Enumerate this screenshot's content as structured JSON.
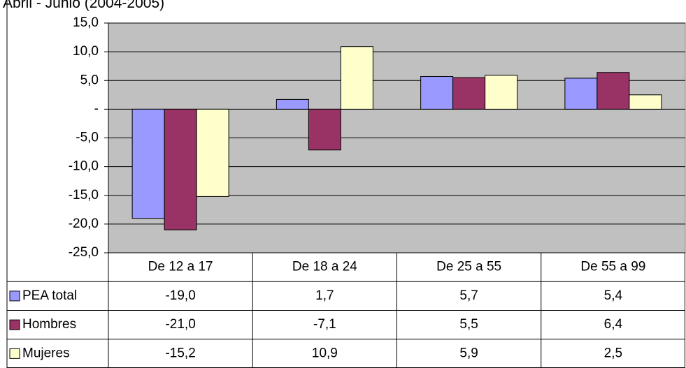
{
  "chart_data": {
    "type": "bar",
    "title": "Abril - Junio (2004-2005)",
    "categories": [
      "De 12 a 17",
      "De 18 a 24",
      "De 25 a 55",
      "De 55 a 99"
    ],
    "series": [
      {
        "name": "PEA total",
        "color": "#9999ff",
        "values": [
          -19.0,
          1.7,
          5.7,
          5.4
        ],
        "value_labels": [
          "-19,0",
          "1,7",
          "5,7",
          "5,4"
        ]
      },
      {
        "name": "Hombres",
        "color": "#993366",
        "values": [
          -21.0,
          -7.1,
          5.5,
          6.4
        ],
        "value_labels": [
          "-21,0",
          "-7,1",
          "5,5",
          "6,4"
        ]
      },
      {
        "name": "Mujeres",
        "color": "#ffffcc",
        "values": [
          -15.2,
          10.9,
          5.9,
          2.5
        ],
        "value_labels": [
          "-15,2",
          "10,9",
          "5,9",
          "2,5"
        ]
      }
    ],
    "ylim": [
      -25,
      15
    ],
    "yticks": [
      {
        "value": -25,
        "label": "-25,0"
      },
      {
        "value": -20,
        "label": "-20,0"
      },
      {
        "value": -15,
        "label": "-15,0"
      },
      {
        "value": -10,
        "label": "-10,0"
      },
      {
        "value": -5,
        "label": "-5,0"
      },
      {
        "value": 0,
        "label": "-"
      },
      {
        "value": 5,
        "label": "5,0"
      },
      {
        "value": 10,
        "label": "10,0"
      },
      {
        "value": 15,
        "label": "15,0"
      }
    ],
    "grid": true,
    "plot_background": "#c0c0c0"
  }
}
